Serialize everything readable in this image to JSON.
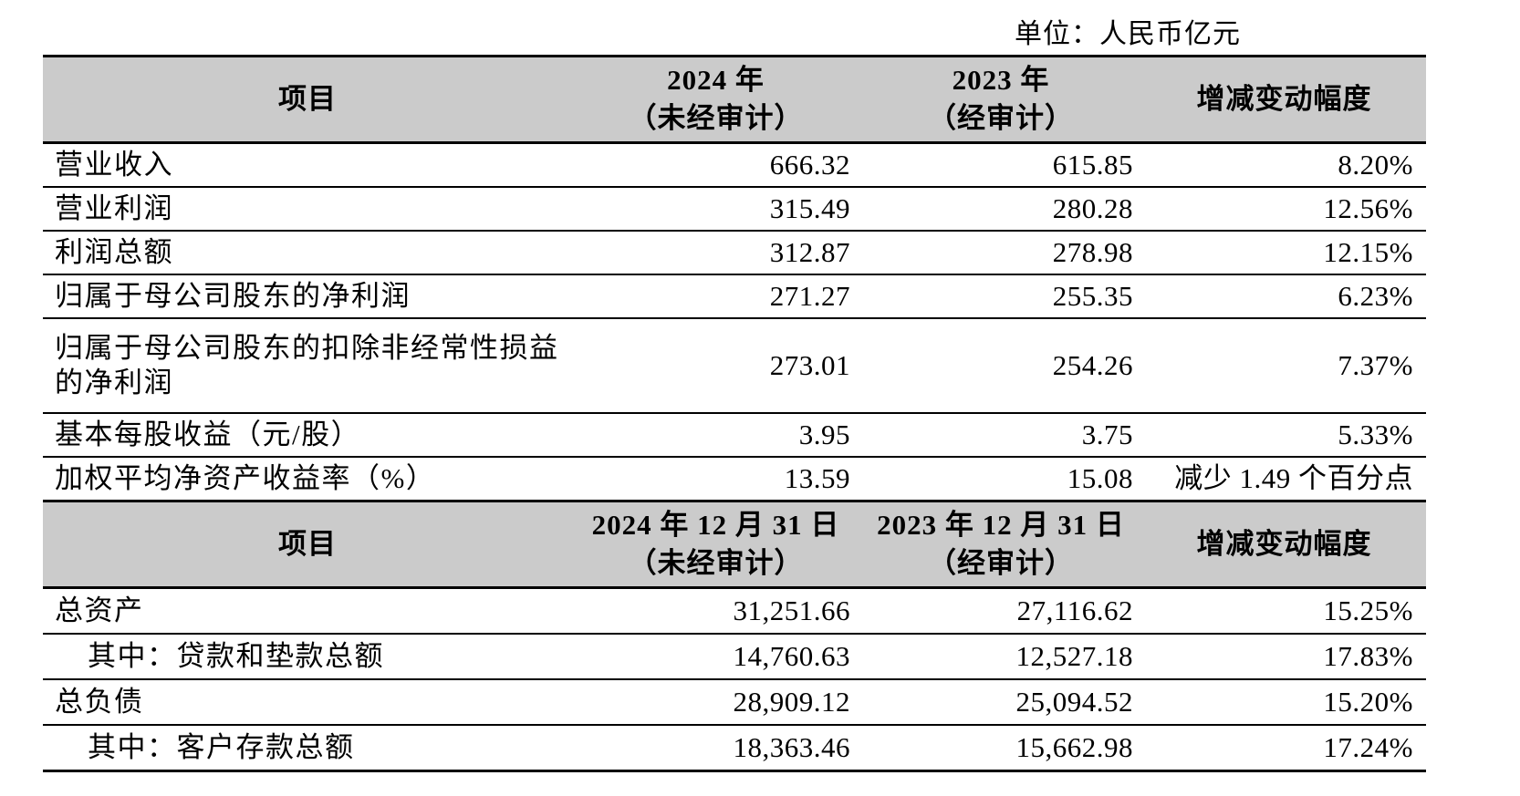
{
  "unit_label": "单位：人民币亿元",
  "colors": {
    "header_bg": "#cbcbcb",
    "border": "#000000",
    "text": "#000000",
    "page_bg": "#ffffff"
  },
  "income_table": {
    "header": {
      "item": "项目",
      "col2024_line1": "2024 年",
      "col2024_line2": "（未经审计）",
      "col2023_line1": "2023 年",
      "col2023_line2": "（经审计）",
      "change": "增减变动幅度"
    },
    "rows": [
      {
        "label": "营业收入",
        "y2024": "666.32",
        "y2023": "615.85",
        "change": "8.20%"
      },
      {
        "label": "营业利润",
        "y2024": "315.49",
        "y2023": "280.28",
        "change": "12.56%"
      },
      {
        "label": "利润总额",
        "y2024": "312.87",
        "y2023": "278.98",
        "change": "12.15%"
      },
      {
        "label": "归属于母公司股东的净利润",
        "y2024": "271.27",
        "y2023": "255.35",
        "change": "6.23%"
      },
      {
        "label": "归属于母公司股东的扣除非经常性损益的净利润",
        "y2024": "273.01",
        "y2023": "254.26",
        "change": "7.37%"
      },
      {
        "label": "基本每股收益（元/股）",
        "y2024": "3.95",
        "y2023": "3.75",
        "change": "5.33%"
      },
      {
        "label": "加权平均净资产收益率（%）",
        "y2024": "13.59",
        "y2023": "15.08",
        "change": "减少 1.49 个百分点"
      }
    ]
  },
  "balance_table": {
    "header": {
      "item": "项目",
      "col2024_line1": "2024 年 12 月 31 日",
      "col2024_line2": "（未经审计）",
      "col2023_line1": "2023 年 12 月 31 日",
      "col2023_line2": "（经审计）",
      "change": "增减变动幅度"
    },
    "rows": [
      {
        "label": "总资产",
        "y2024": "31,251.66",
        "y2023": "27,116.62",
        "change": "15.25%"
      },
      {
        "label": "其中：贷款和垫款总额",
        "y2024": "14,760.63",
        "y2023": "12,527.18",
        "change": "17.83%"
      },
      {
        "label": "总负债",
        "y2024": "28,909.12",
        "y2023": "25,094.52",
        "change": "15.20%"
      },
      {
        "label": "其中：客户存款总额",
        "y2024": "18,363.46",
        "y2023": "15,662.98",
        "change": "17.24%"
      }
    ]
  }
}
